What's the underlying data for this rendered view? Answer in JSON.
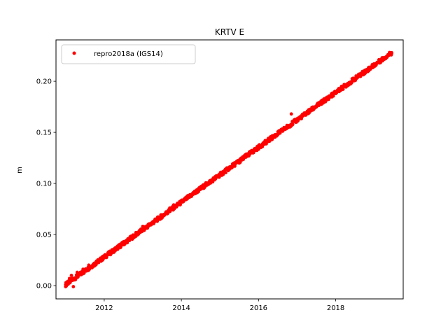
{
  "chart_data": {
    "type": "scatter",
    "title": "KRTV E",
    "xlabel": "",
    "ylabel": "m",
    "xlim": [
      2010.75,
      2019.75
    ],
    "ylim": [
      -0.013,
      0.2405
    ],
    "x_ticks": [
      2012,
      2014,
      2016,
      2018
    ],
    "y_ticks": [
      0.0,
      0.05,
      0.1,
      0.15,
      0.2
    ],
    "y_tick_labels": [
      "0.00",
      "0.05",
      "0.10",
      "0.15",
      "0.20"
    ],
    "grid": false,
    "legend_position": "upper-left",
    "series": [
      {
        "name": "repro2018a (IGS14)",
        "color": "#ff0000",
        "marker": "circle",
        "trend": {
          "x_start": 2011.0,
          "x_end": 2019.45,
          "y_start": 0.001,
          "y_end": 0.228
        },
        "points_x": [
          2011.0,
          2011.05,
          2011.1,
          2011.15,
          2011.2,
          2011.3,
          2011.45,
          2011.6,
          2011.8,
          2012.0,
          2012.25,
          2012.5,
          2012.75,
          2012.9,
          2013.0,
          2013.25,
          2013.5,
          2013.65,
          2013.7,
          2013.8,
          2014.0,
          2014.25,
          2014.5,
          2014.75,
          2015.0,
          2015.25,
          2015.5,
          2015.75,
          2016.0,
          2016.25,
          2016.5,
          2016.75,
          2016.85,
          2016.92,
          2017.0,
          2017.25,
          2017.5,
          2017.75,
          2018.0,
          2018.25,
          2018.5,
          2018.75,
          2019.0,
          2019.25,
          2019.45
        ],
        "points_y": [
          0.001,
          0.004,
          0.007,
          0.01,
          -0.001,
          0.013,
          0.016,
          0.02,
          0.024,
          0.028,
          0.035,
          0.042,
          0.049,
          0.053,
          0.058,
          0.062,
          0.068,
          0.073,
          0.076,
          0.079,
          0.083,
          0.089,
          0.095,
          0.101,
          0.108,
          0.114,
          0.12,
          0.127,
          0.135,
          0.141,
          0.148,
          0.155,
          0.168,
          0.162,
          0.163,
          0.169,
          0.175,
          0.181,
          0.188,
          0.195,
          0.202,
          0.209,
          0.215,
          0.222,
          0.228
        ]
      }
    ]
  }
}
